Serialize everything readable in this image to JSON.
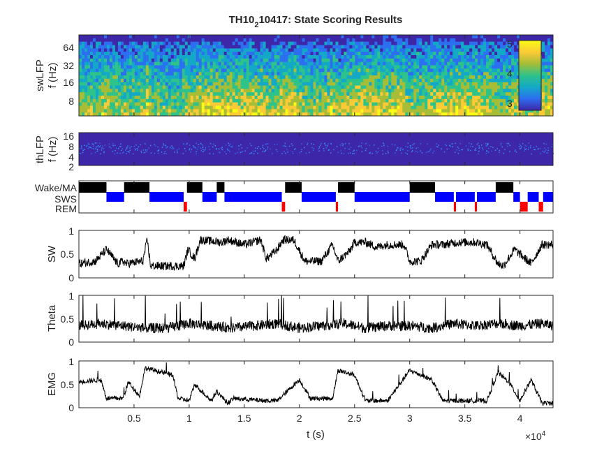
{
  "chart_data": {
    "type": "line",
    "title": "TH10_210417: State Scoring Results",
    "title_parts": {
      "pre": "TH10",
      "sub": "2",
      "post": "10417: State Scoring Results"
    },
    "xlabel": "t (s)",
    "x_exponent_label": "×10",
    "x_exponent_power": "4",
    "xlim": [
      0,
      43000
    ],
    "x_ticks": [
      5000,
      10000,
      15000,
      20000,
      25000,
      30000,
      35000,
      40000
    ],
    "x_tick_labels": [
      "0.5",
      "1",
      "1.5",
      "2",
      "2.5",
      "3",
      "3.5",
      "4"
    ],
    "spectrogram_sw": {
      "ylabel_line1": "swLFP",
      "ylabel_line2": "f (Hz)",
      "y_tick_labels": [
        "8",
        "16",
        "32",
        "64"
      ],
      "colorbar_tick_labels": [
        "3",
        "4",
        "5"
      ],
      "colorbar_range": [
        2.8,
        5.1
      ],
      "colors": [
        "#3e26a8",
        "#2c6ff0",
        "#14a8c8",
        "#2ec38a",
        "#a7bd37",
        "#fbca37",
        "#f9fb15"
      ]
    },
    "spectrogram_th": {
      "ylabel_line1": "thLFP",
      "ylabel_line2": "f (Hz)",
      "y_tick_labels": [
        "2",
        "4",
        "8",
        "16"
      ]
    },
    "hypnogram": {
      "state_labels": [
        "Wake/MA",
        "SWS",
        "REM"
      ],
      "state_colors": [
        "#000000",
        "#0000ff",
        "#ff0000"
      ],
      "states": [
        {
          "state": "Wake/MA",
          "start": 0,
          "end": 2500
        },
        {
          "state": "SWS",
          "start": 2500,
          "end": 4100
        },
        {
          "state": "Wake/MA",
          "start": 4100,
          "end": 6400
        },
        {
          "state": "SWS",
          "start": 6400,
          "end": 9500
        },
        {
          "state": "REM",
          "start": 9500,
          "end": 9800
        },
        {
          "state": "Wake/MA",
          "start": 9800,
          "end": 11200
        },
        {
          "state": "SWS",
          "start": 11200,
          "end": 12500
        },
        {
          "state": "Wake/MA",
          "start": 12500,
          "end": 13200
        },
        {
          "state": "SWS",
          "start": 13200,
          "end": 18400
        },
        {
          "state": "REM",
          "start": 18400,
          "end": 18700
        },
        {
          "state": "Wake/MA",
          "start": 18700,
          "end": 20200
        },
        {
          "state": "SWS",
          "start": 20200,
          "end": 23300
        },
        {
          "state": "REM",
          "start": 23300,
          "end": 23500
        },
        {
          "state": "Wake/MA",
          "start": 23500,
          "end": 25000
        },
        {
          "state": "SWS",
          "start": 25000,
          "end": 30000
        },
        {
          "state": "Wake/MA",
          "start": 30000,
          "end": 32300
        },
        {
          "state": "SWS",
          "start": 32300,
          "end": 34000
        },
        {
          "state": "REM",
          "start": 34000,
          "end": 34200
        },
        {
          "state": "SWS",
          "start": 34200,
          "end": 35900
        },
        {
          "state": "REM",
          "start": 35900,
          "end": 36100
        },
        {
          "state": "SWS",
          "start": 36100,
          "end": 37800
        },
        {
          "state": "Wake/MA",
          "start": 37800,
          "end": 39400
        },
        {
          "state": "SWS",
          "start": 39400,
          "end": 40000
        },
        {
          "state": "REM",
          "start": 40000,
          "end": 40700
        },
        {
          "state": "SWS",
          "start": 40700,
          "end": 41700
        },
        {
          "state": "REM",
          "start": 41700,
          "end": 42100
        },
        {
          "state": "SWS",
          "start": 42100,
          "end": 43000
        }
      ]
    },
    "traces": [
      {
        "name": "SW",
        "ylim": [
          0,
          1
        ],
        "y_ticks": [
          0,
          0.5,
          1
        ],
        "y_tick_labels": [
          "0",
          "0.5",
          "1"
        ],
        "x": [
          0,
          1500,
          2500,
          3500,
          4000,
          4300,
          5800,
          6200,
          6500,
          9500,
          9900,
          10500,
          11000,
          13000,
          13500,
          15000,
          16500,
          17000,
          18000,
          18500,
          19500,
          20500,
          22000,
          23000,
          23500,
          24500,
          25000,
          26000,
          27000,
          28000,
          29500,
          30000,
          31000,
          32000,
          33000,
          34500,
          36000,
          37000,
          38000,
          38500,
          39500,
          40000,
          41000,
          42000,
          43000
        ],
        "y": [
          0.3,
          0.35,
          0.6,
          0.3,
          0.35,
          0.3,
          0.35,
          0.8,
          0.25,
          0.25,
          0.6,
          0.4,
          0.8,
          0.75,
          0.8,
          0.7,
          0.8,
          0.4,
          0.6,
          0.8,
          0.8,
          0.35,
          0.35,
          0.7,
          0.35,
          0.55,
          0.75,
          0.75,
          0.65,
          0.7,
          0.7,
          0.35,
          0.35,
          0.7,
          0.7,
          0.75,
          0.75,
          0.7,
          0.3,
          0.25,
          0.6,
          0.5,
          0.3,
          0.7,
          0.7
        ]
      },
      {
        "name": "Theta",
        "ylim": [
          0,
          1
        ],
        "y_ticks": [
          0,
          0.5,
          1
        ],
        "y_tick_labels": [
          "0",
          "0.5",
          "1"
        ],
        "x": [
          0,
          2000,
          4000,
          6000,
          8000,
          10000,
          12000,
          14000,
          16000,
          18000,
          20000,
          22000,
          24000,
          26000,
          28000,
          30000,
          32000,
          34000,
          36000,
          38000,
          40000,
          42000,
          43000
        ],
        "y": [
          0.35,
          0.4,
          0.35,
          0.3,
          0.3,
          0.4,
          0.35,
          0.3,
          0.35,
          0.4,
          0.3,
          0.35,
          0.4,
          0.3,
          0.35,
          0.35,
          0.3,
          0.4,
          0.35,
          0.4,
          0.35,
          0.4,
          0.35
        ]
      },
      {
        "name": "EMG",
        "ylim": [
          0,
          1
        ],
        "y_ticks": [
          0,
          0.5,
          1
        ],
        "y_tick_labels": [
          "0",
          "0.5",
          "1"
        ],
        "x": [
          0,
          2000,
          2500,
          4000,
          4500,
          5500,
          6000,
          8500,
          9000,
          10000,
          10500,
          12000,
          12500,
          13500,
          14000,
          17000,
          18000,
          20000,
          21000,
          23000,
          23500,
          25000,
          26000,
          27000,
          28000,
          30000,
          32000,
          33000,
          36000,
          37000,
          38000,
          39000,
          40000,
          41000,
          42000,
          43000
        ],
        "y": [
          0.55,
          0.6,
          0.2,
          0.2,
          0.55,
          0.25,
          0.85,
          0.7,
          0.2,
          0.15,
          0.5,
          0.15,
          0.35,
          0.1,
          0.2,
          0.15,
          0.15,
          0.6,
          0.2,
          0.2,
          0.8,
          0.7,
          0.15,
          0.15,
          0.15,
          0.8,
          0.6,
          0.15,
          0.15,
          0.15,
          0.75,
          0.55,
          0.15,
          0.6,
          0.1,
          0.1
        ]
      }
    ]
  }
}
